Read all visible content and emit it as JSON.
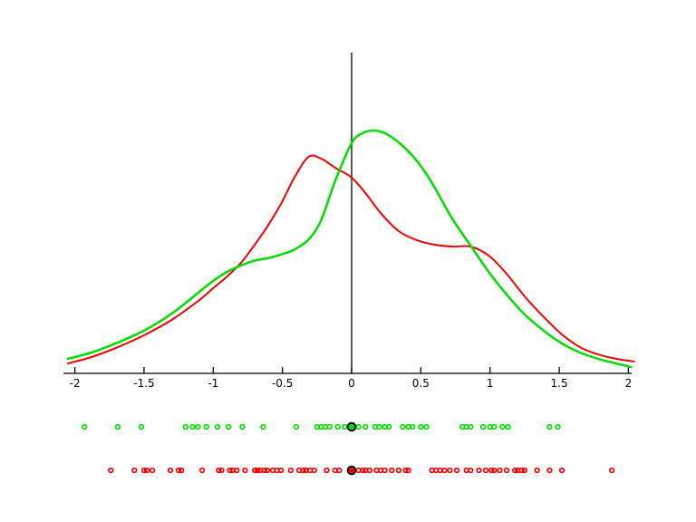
{
  "figure": {
    "background_color": "#ffffff",
    "axis_color": "#000000",
    "green_color": "#00dd00",
    "red_color": "#f20000",
    "highlight_ring_color": "#000000"
  },
  "chart_data": {
    "type": "line",
    "title": "",
    "xlabel": "",
    "ylabel": "",
    "xlim": [
      -2.05,
      2.05
    ],
    "ylim_relative": [
      0,
      1.05
    ],
    "grid": false,
    "legend": "none",
    "x_tick_values": [
      -2,
      -1.5,
      -1,
      -0.5,
      0,
      0.5,
      1,
      1.5,
      2
    ],
    "x_tick_labels": [
      "-2",
      "-1.5",
      "-1",
      "-0.5",
      "0",
      "0.5",
      "1",
      "1.5",
      "2"
    ],
    "annotations": [
      "vertical reference line at x = 0",
      "black-ringed highlighted sample at x = 0 on each rug strip"
    ],
    "series": [
      {
        "name": "green-density-curve",
        "color": "#00dd00",
        "points": [
          [
            -2.05,
            0.06
          ],
          [
            -1.88,
            0.086
          ],
          [
            -1.69,
            0.127
          ],
          [
            -1.49,
            0.179
          ],
          [
            -1.29,
            0.25
          ],
          [
            -1.1,
            0.336
          ],
          [
            -1.0,
            0.381
          ],
          [
            -0.9,
            0.418
          ],
          [
            -0.8,
            0.444
          ],
          [
            -0.71,
            0.463
          ],
          [
            -0.61,
            0.474
          ],
          [
            -0.51,
            0.489
          ],
          [
            -0.41,
            0.511
          ],
          [
            -0.31,
            0.552
          ],
          [
            -0.22,
            0.631
          ],
          [
            -0.12,
            0.791
          ],
          [
            0.0,
            0.948
          ],
          [
            0.08,
            0.989
          ],
          [
            0.16,
            1.0
          ],
          [
            0.24,
            0.989
          ],
          [
            0.34,
            0.951
          ],
          [
            0.44,
            0.896
          ],
          [
            0.54,
            0.821
          ],
          [
            0.63,
            0.735
          ],
          [
            0.73,
            0.634
          ],
          [
            0.86,
            0.526
          ],
          [
            0.99,
            0.418
          ],
          [
            1.12,
            0.325
          ],
          [
            1.25,
            0.243
          ],
          [
            1.39,
            0.175
          ],
          [
            1.52,
            0.123
          ],
          [
            1.65,
            0.086
          ],
          [
            1.78,
            0.06
          ],
          [
            1.91,
            0.041
          ],
          [
            2.02,
            0.026
          ]
        ]
      },
      {
        "name": "red-density-curve",
        "color": "#f20000",
        "points": [
          [
            -2.05,
            0.041
          ],
          [
            -1.88,
            0.067
          ],
          [
            -1.69,
            0.108
          ],
          [
            -1.49,
            0.16
          ],
          [
            -1.29,
            0.224
          ],
          [
            -1.1,
            0.302
          ],
          [
            -1.0,
            0.351
          ],
          [
            -0.9,
            0.399
          ],
          [
            -0.8,
            0.455
          ],
          [
            -0.71,
            0.522
          ],
          [
            -0.61,
            0.604
          ],
          [
            -0.51,
            0.698
          ],
          [
            -0.41,
            0.81
          ],
          [
            -0.31,
            0.892
          ],
          [
            -0.22,
            0.884
          ],
          [
            -0.12,
            0.847
          ],
          [
            0.0,
            0.806
          ],
          [
            0.11,
            0.735
          ],
          [
            0.21,
            0.66
          ],
          [
            0.34,
            0.586
          ],
          [
            0.47,
            0.549
          ],
          [
            0.6,
            0.53
          ],
          [
            0.73,
            0.522
          ],
          [
            0.86,
            0.522
          ],
          [
            0.99,
            0.485
          ],
          [
            1.12,
            0.41
          ],
          [
            1.25,
            0.317
          ],
          [
            1.39,
            0.231
          ],
          [
            1.52,
            0.16
          ],
          [
            1.65,
            0.108
          ],
          [
            1.78,
            0.078
          ],
          [
            1.91,
            0.06
          ],
          [
            2.04,
            0.049
          ]
        ]
      }
    ],
    "rugs": [
      {
        "name": "green-samples",
        "color": "#00dd00",
        "highlighted_value": 0.0,
        "values": [
          -1.93,
          -1.69,
          -1.52,
          -1.2,
          -1.15,
          -1.11,
          -1.05,
          -0.97,
          -0.89,
          -0.79,
          -0.64,
          -0.4,
          -0.25,
          -0.22,
          -0.19,
          -0.16,
          -0.1,
          -0.05,
          0.0,
          0.05,
          0.1,
          0.17,
          0.2,
          0.24,
          0.27,
          0.37,
          0.41,
          0.44,
          0.5,
          0.54,
          0.8,
          0.83,
          0.86,
          0.95,
          1.0,
          1.03,
          1.09,
          1.13,
          1.43,
          1.49
        ]
      },
      {
        "name": "red-samples",
        "color": "#f20000",
        "highlighted_value": 0.0,
        "values": [
          -1.74,
          -1.57,
          -1.5,
          -1.48,
          -1.44,
          -1.31,
          -1.25,
          -1.23,
          -1.08,
          -0.96,
          -0.94,
          -0.88,
          -0.86,
          -0.83,
          -0.77,
          -0.7,
          -0.68,
          -0.66,
          -0.63,
          -0.61,
          -0.57,
          -0.54,
          -0.51,
          -0.44,
          -0.38,
          -0.35,
          -0.33,
          -0.3,
          -0.27,
          -0.18,
          -0.12,
          -0.09,
          0.0,
          0.05,
          0.08,
          0.1,
          0.13,
          0.18,
          0.21,
          0.24,
          0.29,
          0.34,
          0.39,
          0.41,
          0.58,
          0.61,
          0.64,
          0.67,
          0.71,
          0.76,
          0.83,
          0.86,
          0.92,
          0.97,
          1.01,
          1.03,
          1.07,
          1.12,
          1.18,
          1.2,
          1.23,
          1.25,
          1.34,
          1.43,
          1.52,
          1.88
        ]
      }
    ]
  }
}
